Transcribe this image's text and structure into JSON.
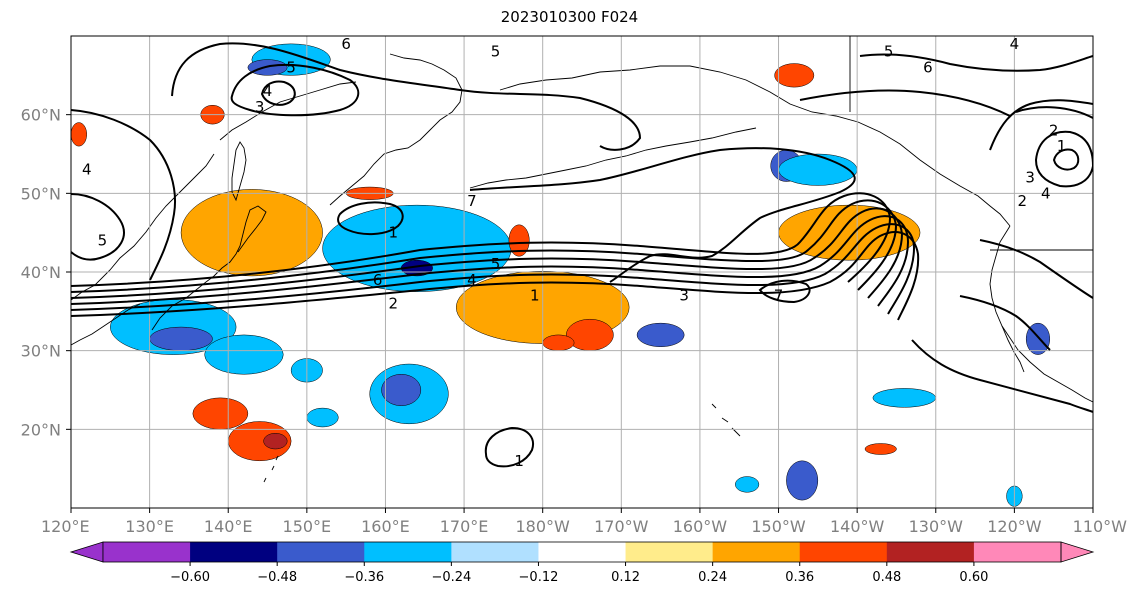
{
  "title": "2023010300 F024",
  "map": {
    "projection": "plate-carree",
    "lon_range": [
      "120°E",
      "110°W"
    ],
    "lat_range": [
      "10°N",
      "70°N"
    ],
    "lat_ticks": [
      {
        "label": "20°N",
        "lat": 20
      },
      {
        "label": "30°N",
        "lat": 30
      },
      {
        "label": "40°N",
        "lat": 40
      },
      {
        "label": "50°N",
        "lat": 50
      },
      {
        "label": "60°N",
        "lat": 60
      }
    ],
    "lon_ticks": [
      {
        "label": "120°E",
        "lon": 120
      },
      {
        "label": "130°E",
        "lon": 130
      },
      {
        "label": "140°E",
        "lon": 140
      },
      {
        "label": "150°E",
        "lon": 150
      },
      {
        "label": "160°E",
        "lon": 160
      },
      {
        "label": "170°E",
        "lon": 170
      },
      {
        "label": "180°W",
        "lon": 180
      },
      {
        "label": "170°W",
        "lon": 190
      },
      {
        "label": "160°W",
        "lon": 200
      },
      {
        "label": "150°W",
        "lon": 210
      },
      {
        "label": "140°W",
        "lon": 220
      },
      {
        "label": "130°W",
        "lon": 230
      },
      {
        "label": "120°W",
        "lon": 240
      },
      {
        "label": "110°W",
        "lon": 250
      }
    ],
    "gridlines": true,
    "contour_labels": [
      {
        "text": "6",
        "lon": 155,
        "lat": 69
      },
      {
        "text": "5",
        "lon": 148,
        "lat": 66
      },
      {
        "text": "4",
        "lon": 145,
        "lat": 63
      },
      {
        "text": "3",
        "lon": 144,
        "lat": 61
      },
      {
        "text": "5",
        "lon": 174,
        "lat": 68
      },
      {
        "text": "5",
        "lon": 224,
        "lat": 68
      },
      {
        "text": "6",
        "lon": 229,
        "lat": 66
      },
      {
        "text": "4",
        "lon": 240,
        "lat": 69
      },
      {
        "text": "2",
        "lon": 245,
        "lat": 58
      },
      {
        "text": "1",
        "lon": 246,
        "lat": 56
      },
      {
        "text": "3",
        "lon": 242,
        "lat": 52
      },
      {
        "text": "4",
        "lon": 244,
        "lat": 50
      },
      {
        "text": "2",
        "lon": 241,
        "lat": 49
      },
      {
        "text": "4",
        "lon": 122,
        "lat": 53
      },
      {
        "text": "5",
        "lon": 124,
        "lat": 44
      },
      {
        "text": "7",
        "lon": 171,
        "lat": 49
      },
      {
        "text": "1",
        "lon": 161,
        "lat": 45
      },
      {
        "text": "6",
        "lon": 159,
        "lat": 39
      },
      {
        "text": "5",
        "lon": 174,
        "lat": 41
      },
      {
        "text": "4",
        "lon": 171,
        "lat": 39
      },
      {
        "text": "1",
        "lon": 179,
        "lat": 37
      },
      {
        "text": "2",
        "lon": 161,
        "lat": 36
      },
      {
        "text": "3",
        "lon": 198,
        "lat": 37
      },
      {
        "text": "7",
        "lon": 210,
        "lat": 37
      },
      {
        "text": "1",
        "lon": 177,
        "lat": 16
      }
    ],
    "shading": [
      {
        "name": "kamchatka-blue",
        "bucket": -0.24,
        "lon": 148,
        "lat": 67,
        "rx": 5,
        "ry": 2
      },
      {
        "name": "kamchatka-blue-core",
        "bucket": -0.36,
        "lon": 145,
        "lat": 66,
        "rx": 2.5,
        "ry": 1
      },
      {
        "name": "okhotsk-orange",
        "bucket": 0.36,
        "lon": 138,
        "lat": 60,
        "rx": 1.5,
        "ry": 1.2
      },
      {
        "name": "hokkaido-red",
        "bucket": 0.48,
        "lon": 142,
        "lat": 46,
        "rx": 5.5,
        "ry": 3.5
      },
      {
        "name": "hokkaido-orange",
        "bucket": 0.36,
        "lon": 143,
        "lat": 45,
        "rx": 8,
        "ry": 4.5
      },
      {
        "name": "hokkaido-yellow",
        "bucket": 0.24,
        "lon": 143,
        "lat": 45,
        "rx": 9,
        "ry": 5.5
      },
      {
        "name": "kuril-blue",
        "bucket": -0.36,
        "lon": 163,
        "lat": 43,
        "rx": 9,
        "ry": 4.5
      },
      {
        "name": "kuril-blue-light",
        "bucket": -0.24,
        "lon": 164,
        "lat": 43,
        "rx": 12,
        "ry": 5.5
      },
      {
        "name": "kuril-navy",
        "bucket": -0.48,
        "lon": 164,
        "lat": 40.5,
        "rx": 2,
        "ry": 1
      },
      {
        "name": "sea-orange",
        "bucket": 0.36,
        "lon": 158,
        "lat": 50,
        "rx": 3,
        "ry": 0.8
      },
      {
        "name": "mid-orange-small",
        "bucket": 0.36,
        "lon": 177,
        "lat": 44,
        "rx": 1.3,
        "ry": 2
      },
      {
        "name": "dateline-red",
        "bucket": 0.48,
        "lon": 179,
        "lat": 37,
        "rx": 5,
        "ry": 2.5
      },
      {
        "name": "dateline-orange",
        "bucket": 0.36,
        "lon": 179,
        "lat": 36,
        "rx": 9,
        "ry": 3.8
      },
      {
        "name": "dateline-yellow",
        "bucket": 0.24,
        "lon": 180,
        "lat": 35.5,
        "rx": 11,
        "ry": 4.6
      },
      {
        "name": "east-orange-a",
        "bucket": 0.36,
        "lon": 186,
        "lat": 32,
        "rx": 3,
        "ry": 2
      },
      {
        "name": "east-orange-b",
        "bucket": 0.36,
        "lon": 182,
        "lat": 31,
        "rx": 2,
        "ry": 1
      },
      {
        "name": "japan-blue",
        "bucket": -0.24,
        "lon": 133,
        "lat": 33,
        "rx": 8,
        "ry": 3.5
      },
      {
        "name": "japan-blue-core",
        "bucket": -0.36,
        "lon": 134,
        "lat": 31.5,
        "rx": 4,
        "ry": 1.5
      },
      {
        "name": "japan-blue-tail",
        "bucket": -0.24,
        "lon": 142,
        "lat": 29.5,
        "rx": 5,
        "ry": 2.5
      },
      {
        "name": "mid-blue-small",
        "bucket": -0.24,
        "lon": 150,
        "lat": 27.5,
        "rx": 2,
        "ry": 1.5
      },
      {
        "name": "central-blue",
        "bucket": -0.24,
        "lon": 163,
        "lat": 24.5,
        "rx": 5,
        "ry": 3.8
      },
      {
        "name": "central-blue-core",
        "bucket": -0.36,
        "lon": 162,
        "lat": 25,
        "rx": 2.5,
        "ry": 2
      },
      {
        "name": "pacific-blue-small",
        "bucket": -0.24,
        "lon": 152,
        "lat": 21.5,
        "rx": 2,
        "ry": 1.2
      },
      {
        "name": "south-red",
        "bucket": 0.48,
        "lon": 138,
        "lat": 22.5,
        "rx": 2,
        "ry": 1
      },
      {
        "name": "south-orange",
        "bucket": 0.36,
        "lon": 139,
        "lat": 22,
        "rx": 3.5,
        "ry": 2
      },
      {
        "name": "south-orange-b",
        "bucket": 0.36,
        "lon": 144,
        "lat": 18.5,
        "rx": 4,
        "ry": 2.5
      },
      {
        "name": "south-red-b",
        "bucket": 0.48,
        "lon": 146,
        "lat": 18.5,
        "rx": 1.5,
        "ry": 1
      },
      {
        "name": "hawaii-blue",
        "bucket": -0.36,
        "lon": 195,
        "lat": 32,
        "rx": 3,
        "ry": 1.5
      },
      {
        "name": "npac-blue-a",
        "bucket": -0.36,
        "lon": 211,
        "lat": 53.5,
        "rx": 2,
        "ry": 2
      },
      {
        "name": "npac-blue-b",
        "bucket": -0.24,
        "lon": 215,
        "lat": 53,
        "rx": 5,
        "ry": 2
      },
      {
        "name": "gulf-red",
        "bucket": 0.48,
        "lon": 220,
        "lat": 45,
        "rx": 5,
        "ry": 2.5
      },
      {
        "name": "gulf-orange",
        "bucket": 0.36,
        "lon": 219,
        "lat": 45,
        "rx": 8,
        "ry": 3
      },
      {
        "name": "gulf-yellow",
        "bucket": 0.24,
        "lon": 219,
        "lat": 45,
        "rx": 9,
        "ry": 3.5
      },
      {
        "name": "alaska-orange",
        "bucket": 0.36,
        "lon": 212,
        "lat": 65,
        "rx": 2.5,
        "ry": 1.5
      },
      {
        "name": "baja-blue",
        "bucket": -0.36,
        "lon": 243,
        "lat": 31.5,
        "rx": 1.5,
        "ry": 2
      },
      {
        "name": "sw-blue",
        "bucket": -0.24,
        "lon": 226,
        "lat": 24,
        "rx": 4,
        "ry": 1.2
      },
      {
        "name": "se-blue",
        "bucket": -0.36,
        "lon": 213,
        "lat": 13.5,
        "rx": 2,
        "ry": 2.5
      },
      {
        "name": "se-orange",
        "bucket": 0.36,
        "lon": 223,
        "lat": 17.5,
        "rx": 2,
        "ry": 0.7
      },
      {
        "name": "se-blue-small",
        "bucket": -0.24,
        "lon": 206,
        "lat": 13,
        "rx": 1.5,
        "ry": 1
      },
      {
        "name": "se-blue-east",
        "bucket": -0.24,
        "lon": 240,
        "lat": 11.5,
        "rx": 1,
        "ry": 1.3
      },
      {
        "name": "nw-orange",
        "bucket": 0.36,
        "lon": 121,
        "lat": 57.5,
        "rx": 1,
        "ry": 1.5
      }
    ]
  },
  "colorbar": {
    "labels": [
      "−0.60",
      "−0.48",
      "−0.36",
      "−0.24",
      "−0.12",
      "0.12",
      "0.24",
      "0.36",
      "0.48",
      "0.60"
    ],
    "bins": [
      {
        "lower": null,
        "upper": -0.72,
        "color": "#9932cc"
      },
      {
        "lower": -0.72,
        "upper": -0.6,
        "color": "#9932cc"
      },
      {
        "lower": -0.6,
        "upper": -0.48,
        "color": "#000080"
      },
      {
        "lower": -0.48,
        "upper": -0.36,
        "color": "#3a5bcc"
      },
      {
        "lower": -0.36,
        "upper": -0.24,
        "color": "#00bfff"
      },
      {
        "lower": -0.24,
        "upper": -0.12,
        "color": "#b0e0ff"
      },
      {
        "lower": -0.12,
        "upper": 0.12,
        "color": "#ffffff"
      },
      {
        "lower": 0.12,
        "upper": 0.24,
        "color": "#ffec8b"
      },
      {
        "lower": 0.24,
        "upper": 0.36,
        "color": "#ffa500"
      },
      {
        "lower": 0.36,
        "upper": 0.48,
        "color": "#ff4500"
      },
      {
        "lower": 0.48,
        "upper": 0.6,
        "color": "#b22222"
      },
      {
        "lower": 0.6,
        "upper": 0.72,
        "color": "#ff88b8"
      },
      {
        "lower": 0.72,
        "upper": null,
        "color": "#ff88b8"
      }
    ],
    "extend": "both"
  }
}
